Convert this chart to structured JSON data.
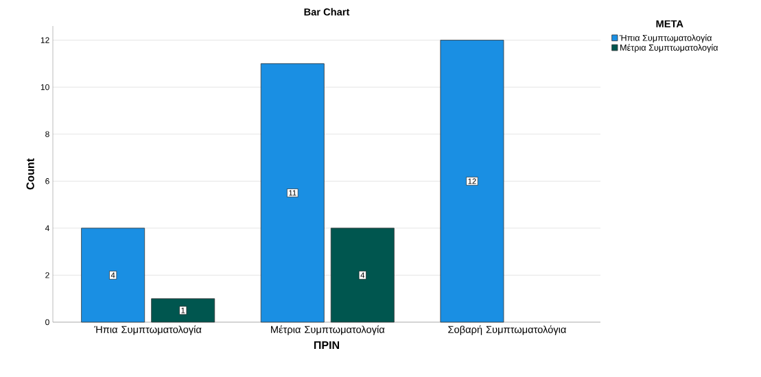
{
  "chart_data": {
    "type": "bar",
    "title": "Bar Chart",
    "xlabel": "ΠΡΙΝ",
    "ylabel": "Count",
    "legend_title": "ΜΕΤΑ",
    "categories": [
      "Ήπια Συμπτωματολογία",
      "Μέτρια Συμπτωματολογία",
      "Σοβαρή Συμπτωματολόγια"
    ],
    "series": [
      {
        "name": "Ήπια Συμπτωματολογία",
        "color": "#1a8fe3",
        "values": [
          4,
          11,
          12
        ]
      },
      {
        "name": "Μέτρια Συμπτωματολογία",
        "color": "#00564f",
        "values": [
          1,
          4,
          null
        ]
      }
    ],
    "ylim": [
      0,
      12.6
    ],
    "yticks": [
      0,
      2,
      4,
      6,
      8,
      10,
      12
    ],
    "grid": "y",
    "legend": "top right",
    "data_labels": true
  }
}
